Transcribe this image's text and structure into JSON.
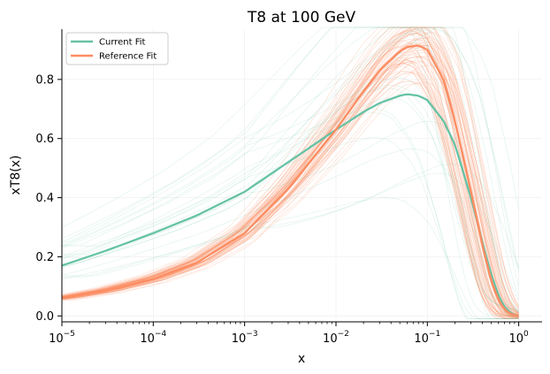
{
  "chart_data": {
    "type": "line",
    "title": "T8 at 100 GeV",
    "xlabel": "x",
    "ylabel": "xT8(x)",
    "xscale": "log",
    "xlim": [
      1e-05,
      1.8
    ],
    "ylim": [
      -0.02,
      0.97
    ],
    "grid": true,
    "legend_position": "top-left",
    "x_ticks": [
      {
        "value": 1e-05,
        "base": "10",
        "exp": "−5"
      },
      {
        "value": 0.0001,
        "base": "10",
        "exp": "−4"
      },
      {
        "value": 0.001,
        "base": "10",
        "exp": "−3"
      },
      {
        "value": 0.01,
        "base": "10",
        "exp": "−2"
      },
      {
        "value": 0.1,
        "base": "10",
        "exp": "−1"
      },
      {
        "value": 1,
        "base": "10",
        "exp": "0"
      }
    ],
    "y_ticks": [
      {
        "value": 0.0,
        "label": "0.0"
      },
      {
        "value": 0.2,
        "label": "0.2"
      },
      {
        "value": 0.4,
        "label": "0.4"
      },
      {
        "value": 0.6,
        "label": "0.6"
      },
      {
        "value": 0.8,
        "label": "0.8"
      }
    ],
    "x": [
      1e-05,
      3e-05,
      0.0001,
      0.0003,
      0.001,
      0.003,
      0.01,
      0.02,
      0.03,
      0.05,
      0.06,
      0.08,
      0.1,
      0.15,
      0.2,
      0.3,
      0.4,
      0.5,
      0.6,
      0.7,
      0.8,
      0.9,
      1.0
    ],
    "series": [
      {
        "name": "Current Fit",
        "color": "#66c2a5",
        "values": [
          0.17,
          0.22,
          0.28,
          0.34,
          0.42,
          0.52,
          0.63,
          0.69,
          0.72,
          0.745,
          0.75,
          0.745,
          0.73,
          0.66,
          0.58,
          0.4,
          0.25,
          0.14,
          0.07,
          0.03,
          0.012,
          0.004,
          0.0
        ]
      },
      {
        "name": "Reference Fit",
        "color": "#fc8d62",
        "values": [
          0.06,
          0.085,
          0.125,
          0.18,
          0.28,
          0.43,
          0.63,
          0.76,
          0.83,
          0.895,
          0.91,
          0.915,
          0.9,
          0.8,
          0.66,
          0.42,
          0.24,
          0.12,
          0.055,
          0.022,
          0.008,
          0.003,
          0.0
        ]
      }
    ]
  }
}
